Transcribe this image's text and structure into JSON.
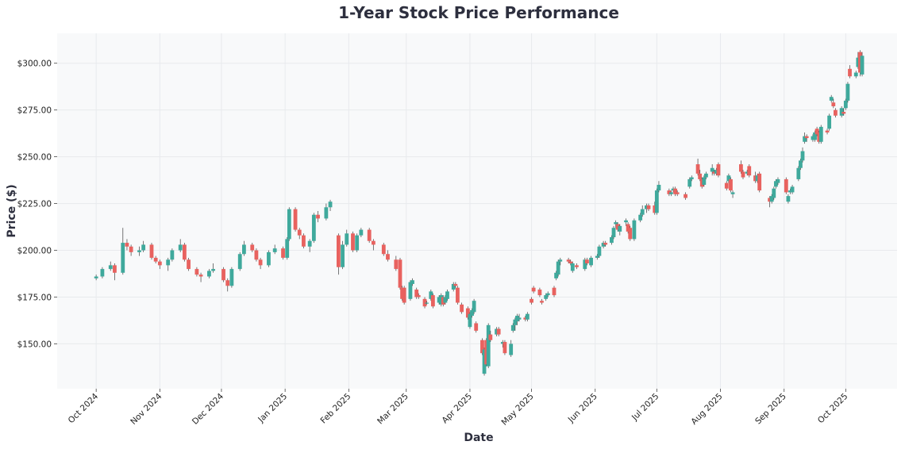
{
  "chart_data": {
    "type": "candlestick",
    "title": "1-Year Stock Price Performance",
    "xlabel": "Date",
    "ylabel": "Price ($)",
    "xlim": [
      "2024-09-12",
      "2025-10-26"
    ],
    "ylim": [
      126,
      316
    ],
    "grid": true,
    "colors": {
      "up": "#3fa99c",
      "down": "#e8625f",
      "background": "#f8f9fa",
      "grid": "#e8eaed",
      "title": "#2d2f3e"
    },
    "y_ticks": [
      {
        "value": 150,
        "label": "$150.00"
      },
      {
        "value": 175,
        "label": "$175.00"
      },
      {
        "value": 200,
        "label": "$200.00"
      },
      {
        "value": 225,
        "label": "$225.00"
      },
      {
        "value": 250,
        "label": "$250.00"
      },
      {
        "value": 275,
        "label": "$275.00"
      },
      {
        "value": 300,
        "label": "$300.00"
      }
    ],
    "x_ticks": [
      {
        "date": "2024-10-01",
        "label": "Oct 2024"
      },
      {
        "date": "2024-11-01",
        "label": "Nov 2024"
      },
      {
        "date": "2024-12-01",
        "label": "Dec 2024"
      },
      {
        "date": "2025-01-01",
        "label": "Jan 2025"
      },
      {
        "date": "2025-02-01",
        "label": "Feb 2025"
      },
      {
        "date": "2025-03-01",
        "label": "Mar 2025"
      },
      {
        "date": "2025-04-01",
        "label": "Apr 2025"
      },
      {
        "date": "2025-05-01",
        "label": "May 2025"
      },
      {
        "date": "2025-06-01",
        "label": "Jun 2025"
      },
      {
        "date": "2025-07-01",
        "label": "Jul 2025"
      },
      {
        "date": "2025-08-01",
        "label": "Aug 2025"
      },
      {
        "date": "2025-09-01",
        "label": "Sep 2025"
      },
      {
        "date": "2025-10-01",
        "label": "Oct 2025"
      }
    ],
    "candle_fields": [
      "date",
      "open",
      "high",
      "low",
      "close"
    ],
    "candles": [
      [
        "2024-10-01",
        185,
        187,
        184,
        186
      ],
      [
        "2024-10-04",
        186,
        191,
        185,
        190
      ],
      [
        "2024-10-08",
        190,
        194,
        189,
        192
      ],
      [
        "2024-10-10",
        192,
        193,
        184,
        188
      ],
      [
        "2024-10-14",
        188,
        212,
        187,
        204
      ],
      [
        "2024-10-16",
        204,
        206,
        200,
        202
      ],
      [
        "2024-10-18",
        202,
        203,
        197,
        199
      ],
      [
        "2024-10-22",
        199,
        202,
        197,
        200
      ],
      [
        "2024-10-24",
        200,
        205,
        199,
        203
      ],
      [
        "2024-10-28",
        203,
        204,
        195,
        196
      ],
      [
        "2024-10-30",
        196,
        197,
        193,
        194
      ],
      [
        "2024-11-01",
        194,
        195,
        190,
        192
      ],
      [
        "2024-11-05",
        192,
        196,
        189,
        195
      ],
      [
        "2024-11-07",
        195,
        201,
        194,
        200
      ],
      [
        "2024-11-11",
        200,
        206,
        199,
        203
      ],
      [
        "2024-11-13",
        203,
        204,
        194,
        195
      ],
      [
        "2024-11-15",
        195,
        196,
        189,
        190
      ],
      [
        "2024-11-19",
        190,
        191,
        186,
        187
      ],
      [
        "2024-11-21",
        187,
        188,
        183,
        186
      ],
      [
        "2024-11-25",
        186,
        190,
        185,
        189
      ],
      [
        "2024-11-27",
        189,
        193,
        188,
        190
      ],
      [
        "2024-12-02",
        190,
        191,
        183,
        184
      ],
      [
        "2024-12-04",
        184,
        185,
        178,
        181
      ],
      [
        "2024-12-06",
        181,
        191,
        180,
        190
      ],
      [
        "2024-12-10",
        190,
        199,
        189,
        198
      ],
      [
        "2024-12-12",
        198,
        205,
        197,
        203
      ],
      [
        "2024-12-16",
        203,
        204,
        199,
        200
      ],
      [
        "2024-12-18",
        200,
        201,
        194,
        195
      ],
      [
        "2024-12-20",
        195,
        196,
        190,
        192
      ],
      [
        "2024-12-24",
        192,
        200,
        191,
        199
      ],
      [
        "2024-12-27",
        199,
        203,
        198,
        201
      ],
      [
        "2024-12-31",
        201,
        202,
        195,
        196
      ],
      [
        "2025-01-02",
        196,
        207,
        195,
        206
      ],
      [
        "2025-01-03",
        206,
        223,
        205,
        222
      ],
      [
        "2025-01-06",
        222,
        223,
        210,
        211
      ],
      [
        "2025-01-08",
        211,
        212,
        206,
        208
      ],
      [
        "2025-01-10",
        208,
        209,
        201,
        202
      ],
      [
        "2025-01-13",
        202,
        206,
        199,
        205
      ],
      [
        "2025-01-15",
        205,
        220,
        204,
        219
      ],
      [
        "2025-01-17",
        219,
        221,
        215,
        217
      ],
      [
        "2025-01-21",
        217,
        225,
        216,
        223
      ],
      [
        "2025-01-23",
        223,
        227,
        221,
        226
      ],
      [
        "2025-01-27",
        208,
        209,
        187,
        191
      ],
      [
        "2025-01-29",
        191,
        205,
        190,
        203
      ],
      [
        "2025-01-31",
        203,
        211,
        202,
        209
      ],
      [
        "2025-02-03",
        209,
        210,
        199,
        200
      ],
      [
        "2025-02-05",
        200,
        209,
        199,
        208
      ],
      [
        "2025-02-07",
        208,
        212,
        207,
        211
      ],
      [
        "2025-02-11",
        211,
        212,
        204,
        205
      ],
      [
        "2025-02-13",
        205,
        206,
        200,
        203
      ],
      [
        "2025-02-18",
        203,
        204,
        197,
        198
      ],
      [
        "2025-02-20",
        198,
        200,
        194,
        195
      ],
      [
        "2025-02-24",
        195,
        197,
        189,
        190
      ],
      [
        "2025-02-26",
        195,
        196,
        179,
        180
      ],
      [
        "2025-02-27",
        180,
        181,
        173,
        174
      ],
      [
        "2025-02-28",
        180,
        181,
        171,
        172
      ],
      [
        "2025-03-03",
        174,
        184,
        173,
        183
      ],
      [
        "2025-03-04",
        182,
        185,
        181,
        184
      ],
      [
        "2025-03-06",
        179,
        180,
        174,
        175
      ],
      [
        "2025-03-07",
        176,
        177,
        174,
        175
      ],
      [
        "2025-03-10",
        174,
        175,
        169,
        170
      ],
      [
        "2025-03-11",
        172,
        173,
        171,
        172
      ],
      [
        "2025-03-13",
        174,
        179,
        173,
        178
      ],
      [
        "2025-03-14",
        176,
        177,
        169,
        170
      ],
      [
        "2025-03-17",
        172,
        176,
        171,
        175
      ],
      [
        "2025-03-18",
        171,
        177,
        170,
        176
      ],
      [
        "2025-03-19",
        175,
        176,
        170,
        171
      ],
      [
        "2025-03-20",
        172,
        176,
        171,
        175
      ],
      [
        "2025-03-21",
        174,
        179,
        173,
        178
      ],
      [
        "2025-03-24",
        179,
        183,
        178,
        182
      ],
      [
        "2025-03-25",
        182,
        183,
        180,
        181
      ],
      [
        "2025-03-26",
        180,
        181,
        171,
        172
      ],
      [
        "2025-03-28",
        171,
        172,
        166,
        167
      ],
      [
        "2025-03-31",
        169,
        170,
        163,
        164
      ],
      [
        "2025-04-01",
        159,
        167,
        158,
        166
      ],
      [
        "2025-04-02",
        165,
        169,
        164,
        168
      ],
      [
        "2025-04-03",
        167,
        174,
        166,
        173
      ],
      [
        "2025-04-04",
        161,
        162,
        156,
        157
      ],
      [
        "2025-04-07",
        152,
        153,
        144,
        145
      ],
      [
        "2025-04-08",
        134,
        148,
        133,
        147
      ],
      [
        "2025-04-09",
        152,
        153,
        138,
        139
      ],
      [
        "2025-04-10",
        138,
        161,
        137,
        160
      ],
      [
        "2025-04-11",
        155,
        157,
        151,
        152
      ],
      [
        "2025-04-14",
        155,
        159,
        154,
        158
      ],
      [
        "2025-04-15",
        158,
        159,
        154,
        155
      ],
      [
        "2025-04-17",
        150,
        152,
        148,
        151
      ],
      [
        "2025-04-18",
        151,
        152,
        144,
        145
      ],
      [
        "2025-04-21",
        144,
        152,
        143,
        150
      ],
      [
        "2025-04-22",
        157,
        161,
        156,
        160
      ],
      [
        "2025-04-23",
        160,
        164,
        157,
        163
      ],
      [
        "2025-04-24",
        162,
        166,
        160,
        165
      ],
      [
        "2025-04-25",
        163,
        166,
        162,
        164
      ],
      [
        "2025-04-28",
        164,
        165,
        162,
        163
      ],
      [
        "2025-04-29",
        163,
        167,
        162,
        166
      ],
      [
        "2025-05-01",
        174,
        175,
        171,
        172
      ],
      [
        "2025-05-02",
        180,
        181,
        177,
        178
      ],
      [
        "2025-05-05",
        179,
        180,
        175,
        176
      ],
      [
        "2025-05-06",
        173,
        174,
        171,
        172
      ],
      [
        "2025-05-08",
        174,
        177,
        173,
        176
      ],
      [
        "2025-05-09",
        176,
        178,
        175,
        177
      ],
      [
        "2025-05-12",
        180,
        181,
        175,
        176
      ],
      [
        "2025-05-13",
        185,
        189,
        184,
        188
      ],
      [
        "2025-05-14",
        187,
        195,
        186,
        194
      ],
      [
        "2025-05-15",
        194,
        196,
        192,
        195
      ],
      [
        "2025-05-19",
        195,
        196,
        193,
        194
      ],
      [
        "2025-05-20",
        194,
        195,
        192,
        193
      ],
      [
        "2025-05-21",
        189,
        194,
        188,
        193
      ],
      [
        "2025-05-23",
        192,
        193,
        190,
        191
      ],
      [
        "2025-05-27",
        190,
        196,
        189,
        195
      ],
      [
        "2025-05-28",
        195,
        196,
        192,
        193
      ],
      [
        "2025-05-30",
        192,
        197,
        191,
        196
      ],
      [
        "2025-06-02",
        196,
        198,
        195,
        197
      ],
      [
        "2025-06-03",
        197,
        203,
        196,
        202
      ],
      [
        "2025-06-05",
        202,
        205,
        201,
        204
      ],
      [
        "2025-06-06",
        204,
        205,
        202,
        203
      ],
      [
        "2025-06-09",
        204,
        208,
        203,
        207
      ],
      [
        "2025-06-10",
        207,
        213,
        206,
        212
      ],
      [
        "2025-06-11",
        214,
        216,
        212,
        215
      ],
      [
        "2025-06-12",
        214,
        215,
        210,
        211
      ],
      [
        "2025-06-13",
        210,
        214,
        208,
        213
      ],
      [
        "2025-06-16",
        215,
        217,
        213,
        216
      ],
      [
        "2025-06-17",
        214,
        215,
        209,
        210
      ],
      [
        "2025-06-18",
        212,
        213,
        205,
        206
      ],
      [
        "2025-06-20",
        206,
        217,
        205,
        216
      ],
      [
        "2025-06-23",
        216,
        220,
        215,
        219
      ],
      [
        "2025-06-24",
        219,
        224,
        218,
        222
      ],
      [
        "2025-06-26",
        222,
        225,
        220,
        224
      ],
      [
        "2025-06-27",
        224,
        225,
        221,
        222
      ],
      [
        "2025-06-30",
        224,
        226,
        219,
        220
      ],
      [
        "2025-07-01",
        220,
        233,
        219,
        232
      ],
      [
        "2025-07-02",
        232,
        237,
        231,
        235
      ],
      [
        "2025-07-07",
        232,
        233,
        229,
        230
      ],
      [
        "2025-07-08",
        230,
        232,
        229,
        231
      ],
      [
        "2025-07-09",
        232,
        234,
        231,
        233
      ],
      [
        "2025-07-10",
        233,
        234,
        229,
        230
      ],
      [
        "2025-07-11",
        231,
        232,
        229,
        230
      ],
      [
        "2025-07-15",
        230,
        231,
        227,
        228
      ],
      [
        "2025-07-17",
        234,
        239,
        233,
        238
      ],
      [
        "2025-07-18",
        238,
        240,
        237,
        239
      ],
      [
        "2025-07-21",
        246,
        249,
        240,
        241
      ],
      [
        "2025-07-22",
        241,
        243,
        237,
        238
      ],
      [
        "2025-07-23",
        238,
        239,
        233,
        234
      ],
      [
        "2025-07-24",
        235,
        240,
        234,
        239
      ],
      [
        "2025-07-25",
        239,
        242,
        238,
        241
      ],
      [
        "2025-07-28",
        242,
        246,
        240,
        244
      ],
      [
        "2025-07-29",
        242,
        243,
        240,
        241
      ],
      [
        "2025-07-30",
        241,
        244,
        240,
        243
      ],
      [
        "2025-07-31",
        246,
        247,
        239,
        240
      ],
      [
        "2025-08-04",
        236,
        237,
        232,
        233
      ],
      [
        "2025-08-05",
        237,
        241,
        236,
        240
      ],
      [
        "2025-08-06",
        238,
        239,
        231,
        232
      ],
      [
        "2025-08-07",
        230,
        232,
        228,
        231
      ],
      [
        "2025-08-11",
        246,
        248,
        241,
        242
      ],
      [
        "2025-08-12",
        242,
        243,
        238,
        239
      ],
      [
        "2025-08-14",
        241,
        243,
        240,
        242
      ],
      [
        "2025-08-15",
        245,
        246,
        239,
        240
      ],
      [
        "2025-08-18",
        240,
        242,
        236,
        237
      ],
      [
        "2025-08-19",
        237,
        241,
        236,
        240
      ],
      [
        "2025-08-20",
        241,
        242,
        231,
        232
      ],
      [
        "2025-08-25",
        228,
        229,
        223,
        226
      ],
      [
        "2025-08-26",
        226,
        230,
        225,
        229
      ],
      [
        "2025-08-27",
        228,
        234,
        227,
        233
      ],
      [
        "2025-08-28",
        234,
        238,
        233,
        237
      ],
      [
        "2025-08-29",
        236,
        239,
        235,
        238
      ],
      [
        "2025-09-02",
        238,
        239,
        230,
        231
      ],
      [
        "2025-09-03",
        226,
        230,
        225,
        229
      ],
      [
        "2025-09-04",
        231,
        233,
        230,
        232
      ],
      [
        "2025-09-05",
        231,
        235,
        230,
        234
      ],
      [
        "2025-09-08",
        238,
        245,
        237,
        244
      ],
      [
        "2025-09-09",
        244,
        249,
        243,
        248
      ],
      [
        "2025-09-10",
        248,
        255,
        247,
        253
      ],
      [
        "2025-09-11",
        258,
        263,
        257,
        261
      ],
      [
        "2025-09-12",
        261,
        262,
        258,
        260
      ],
      [
        "2025-09-15",
        259,
        262,
        258,
        261
      ],
      [
        "2025-09-16",
        259,
        264,
        258,
        263
      ],
      [
        "2025-09-17",
        265,
        266,
        261,
        262
      ],
      [
        "2025-09-18",
        263,
        264,
        257,
        258
      ],
      [
        "2025-09-19",
        258,
        267,
        257,
        266
      ],
      [
        "2025-09-22",
        264,
        265,
        262,
        263
      ],
      [
        "2025-09-23",
        265,
        273,
        264,
        272
      ],
      [
        "2025-09-24",
        280,
        283,
        279,
        282
      ],
      [
        "2025-09-25",
        279,
        281,
        276,
        277
      ],
      [
        "2025-09-26",
        275,
        276,
        271,
        272
      ],
      [
        "2025-09-29",
        272,
        277,
        271,
        276
      ],
      [
        "2025-09-30",
        274,
        276,
        272,
        273
      ],
      [
        "2025-10-01",
        276,
        281,
        275,
        280
      ],
      [
        "2025-10-02",
        280,
        290,
        279,
        289
      ],
      [
        "2025-10-03",
        297,
        299,
        292,
        293
      ],
      [
        "2025-10-06",
        293,
        296,
        292,
        295
      ],
      [
        "2025-10-07",
        298,
        306,
        297,
        303
      ],
      [
        "2025-10-08",
        306,
        307,
        293,
        295
      ],
      [
        "2025-10-09",
        294,
        306,
        293,
        304
      ]
    ]
  }
}
